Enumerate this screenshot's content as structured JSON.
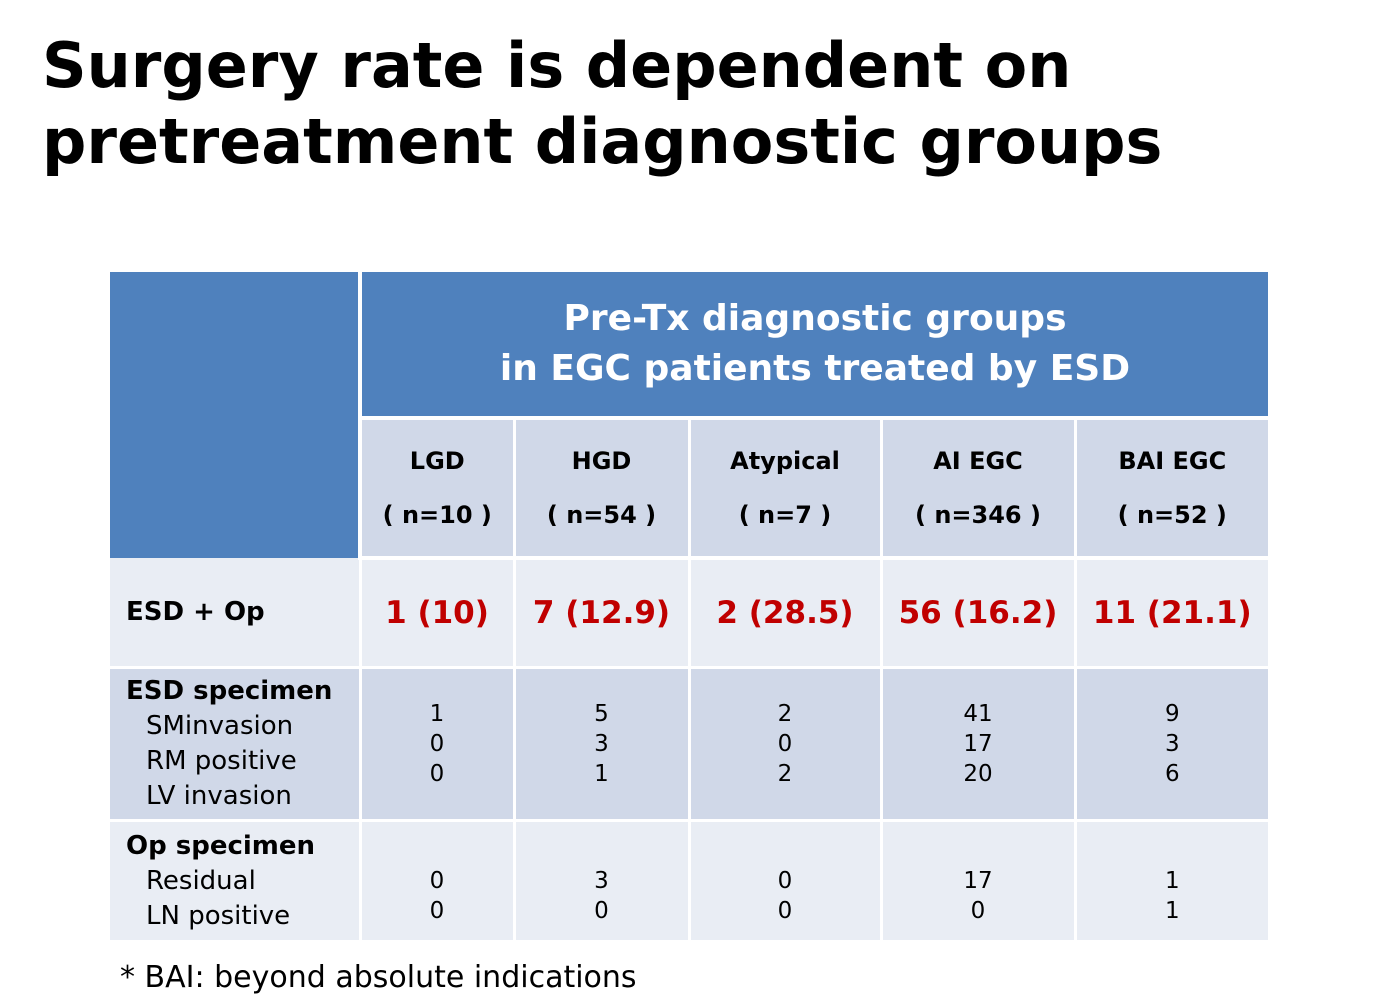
{
  "title": {
    "line1": "Surgery rate is dependent on",
    "line2": "pretreatment diagnostic groups"
  },
  "table": {
    "group_header": {
      "line1": "Pre-Tx diagnostic groups",
      "line2": "in EGC patients treated by ESD"
    },
    "columns": [
      {
        "name": "LGD",
        "n": "( n=10 )"
      },
      {
        "name": "HGD",
        "n": "( n=54 )"
      },
      {
        "name": "Atypical",
        "n": "( n=7 )"
      },
      {
        "name": "AI EGC",
        "n": "( n=346 )"
      },
      {
        "name": "BAI EGC",
        "n": "( n=52 )"
      }
    ],
    "esd_op": {
      "label": "ESD + Op",
      "values": [
        "1 (10)",
        "7 (12.9)",
        "2 (28.5)",
        "56 (16.2)",
        "11 (21.1)"
      ]
    },
    "esd_specimen": {
      "label": "ESD specimen",
      "sub_labels": [
        "SMinvasion",
        "RM positive",
        "LV invasion"
      ],
      "values": [
        [
          "1",
          "0",
          "0"
        ],
        [
          "5",
          "3",
          "1"
        ],
        [
          "2",
          "0",
          "2"
        ],
        [
          "41",
          "17",
          "20"
        ],
        [
          "9",
          "3",
          "6"
        ]
      ]
    },
    "op_specimen": {
      "label": "Op specimen",
      "sub_labels": [
        "Residual",
        "LN positive"
      ],
      "values": [
        [
          "0",
          "0"
        ],
        [
          "3",
          "0"
        ],
        [
          "0",
          "0"
        ],
        [
          "17",
          "0"
        ],
        [
          "1",
          "1"
        ]
      ]
    }
  },
  "footnote": "* BAI: beyond absolute indications",
  "colors": {
    "header_blue": "#4f81bd",
    "band_dark": "#d0d8e8",
    "band_light": "#e9edf4",
    "highlight_red": "#c00000"
  }
}
